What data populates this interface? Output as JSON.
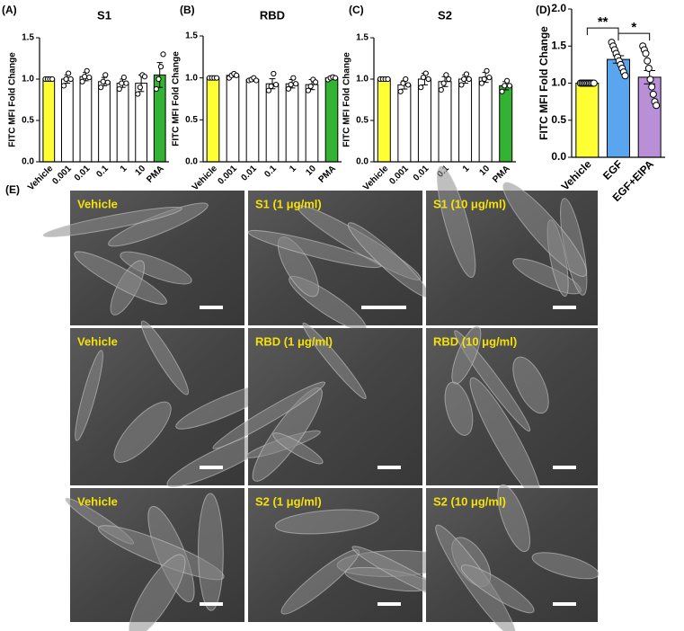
{
  "chart_data": [
    {
      "type": "bar",
      "panel": "(A)",
      "title": "S1",
      "ylabel": "FITC MFI Fold Change",
      "categories": [
        "Vehicle",
        "0.001",
        "0.01",
        "0.1",
        "1",
        "10",
        "PMA"
      ],
      "values": [
        1.0,
        1.0,
        1.03,
        0.97,
        0.95,
        0.95,
        1.05
      ],
      "errors": [
        0.0,
        0.05,
        0.05,
        0.05,
        0.05,
        0.1,
        0.15
      ],
      "points": [
        [
          1.0,
          1.0,
          1.0,
          1.0
        ],
        [
          0.92,
          1.0,
          1.07,
          1.0
        ],
        [
          0.97,
          1.03,
          1.1,
          1.02
        ],
        [
          0.9,
          0.97,
          1.05,
          0.96
        ],
        [
          0.88,
          0.95,
          1.02,
          0.95
        ],
        [
          0.82,
          0.9,
          1.05,
          1.03
        ],
        [
          0.88,
          1.0,
          1.15,
          1.3
        ]
      ],
      "colors": [
        "#ffff33",
        "#ffffff",
        "#ffffff",
        "#ffffff",
        "#ffffff",
        "#ffffff",
        "#33b233"
      ],
      "ylim": [
        0,
        1.5
      ],
      "yticks": [
        {
          "value": 0,
          "label": "0.0"
        },
        0.5,
        {
          "value": 1,
          "label": "1.0"
        },
        1.5
      ]
    },
    {
      "type": "bar",
      "panel": "(B)",
      "title": "RBD",
      "ylabel": "FITC MFI Fold Change",
      "categories": [
        "Vehicle",
        "0.001",
        "0.01",
        "0.1",
        "1",
        "10",
        "PMA"
      ],
      "values": [
        1.0,
        1.03,
        0.98,
        0.93,
        0.93,
        0.92,
        1.0
      ],
      "errors": [
        0.0,
        0.02,
        0.02,
        0.06,
        0.05,
        0.06,
        0.02
      ],
      "points": [
        [
          1.0,
          1.0,
          1.0,
          1.0
        ],
        [
          1.0,
          1.03,
          1.05,
          1.03
        ],
        [
          0.97,
          0.98,
          1.0,
          0.97
        ],
        [
          0.85,
          0.9,
          1.05,
          0.92
        ],
        [
          0.87,
          0.92,
          1.0,
          0.93
        ],
        [
          0.85,
          0.9,
          0.98,
          0.95
        ],
        [
          0.98,
          1.0,
          1.01,
          1.0
        ]
      ],
      "colors": [
        "#ffff33",
        "#ffffff",
        "#ffffff",
        "#ffffff",
        "#ffffff",
        "#ffffff",
        "#33b233"
      ],
      "ylim": [
        0,
        1.5
      ],
      "yticks": [
        {
          "value": 0,
          "label": "0.0"
        },
        0.5,
        {
          "value": 1,
          "label": "1.0"
        },
        1.5
      ]
    },
    {
      "type": "bar",
      "panel": "(C)",
      "title": "S2",
      "ylabel": "FITC MFI Fold Change",
      "categories": [
        "Vehicle",
        "0.001",
        "0.01",
        "0.1",
        "1",
        "10",
        "PMA"
      ],
      "values": [
        1.0,
        0.93,
        1.0,
        0.97,
        1.0,
        1.02,
        0.92
      ],
      "errors": [
        0.0,
        0.05,
        0.07,
        0.06,
        0.05,
        0.06,
        0.05
      ],
      "points": [
        [
          1.0,
          1.0,
          1.0,
          1.0
        ],
        [
          0.85,
          0.95,
          1.0,
          0.93
        ],
        [
          0.9,
          1.02,
          1.07,
          1.0
        ],
        [
          0.87,
          0.95,
          1.05,
          1.0
        ],
        [
          0.93,
          1.0,
          1.06,
          1.0
        ],
        [
          0.95,
          1.0,
          1.1,
          1.02
        ],
        [
          0.85,
          0.92,
          0.98,
          0.92
        ]
      ],
      "colors": [
        "#ffff33",
        "#ffffff",
        "#ffffff",
        "#ffffff",
        "#ffffff",
        "#ffffff",
        "#33b233"
      ],
      "ylim": [
        0,
        1.5
      ],
      "yticks": [
        {
          "value": 0,
          "label": "0.0"
        },
        0.5,
        {
          "value": 1,
          "label": "1.0"
        },
        1.5
      ]
    },
    {
      "type": "bar",
      "panel": "(D)",
      "ylabel": "FITC MFI Fold Change",
      "categories": [
        "Vehicle",
        "EGF",
        "EGF+EIPA"
      ],
      "values": [
        1.0,
        1.32,
        1.08
      ],
      "errors": [
        0.0,
        0.05,
        0.09
      ],
      "points": [
        [
          1.0,
          1.0,
          1.0,
          1.0,
          1.0,
          1.0,
          1.0,
          1.0,
          1.0,
          1.0
        ],
        [
          1.55,
          1.5,
          1.45,
          1.4,
          1.35,
          1.3,
          1.25,
          1.2,
          1.15,
          1.1
        ],
        [
          1.5,
          1.45,
          1.4,
          1.3,
          1.2,
          1.05,
          0.95,
          0.85,
          0.75,
          0.7
        ]
      ],
      "colors": [
        "#ffff33",
        "#5aa6ee",
        "#b98fd8"
      ],
      "annotations": [
        "**",
        "*"
      ],
      "ylim": [
        0,
        2
      ],
      "yticks": [
        {
          "value": 0,
          "label": "0.0"
        },
        0.5,
        {
          "value": 1,
          "label": "1.0"
        },
        1.5,
        {
          "value": 2,
          "label": "2.0"
        }
      ]
    }
  ],
  "panel_e": {
    "label": "(E)",
    "images": [
      [
        "Vehicle",
        "S1 (1 μg/ml)",
        "S1 (10 μg/ml)"
      ],
      [
        "Vehicle",
        "RBD (1 μg/ml)",
        "RBD (10 μg/ml)"
      ],
      [
        "Vehicle",
        "S2 (1 μg/ml)",
        "S2 (10 μg/ml)"
      ]
    ]
  }
}
